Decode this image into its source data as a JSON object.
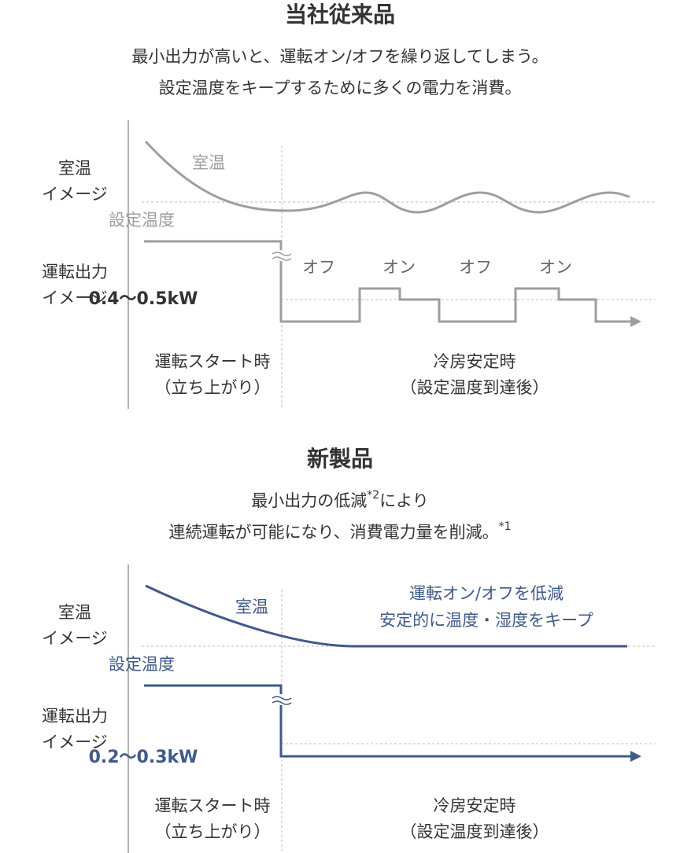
{
  "sections": [
    {
      "title": "当社従来品",
      "description": [
        [
          "最小出力が高いと、運転オン/オフを繰り返してしまう。"
        ],
        [
          "設定温度をキープするために多くの電力を消費。"
        ]
      ],
      "color": "#9e9e9e",
      "output_color": "#333333",
      "row_labels": [
        [
          "室温",
          "イメージ"
        ],
        [
          "運転出力",
          "イメージ"
        ]
      ],
      "curve_label": "室温",
      "setpoint_label": "設定温度",
      "output_label": "0.4〜0.5kW",
      "state_labels": [
        "オフ",
        "オン",
        "オフ",
        "オン"
      ],
      "phases": [
        [
          "運転スタート時",
          "（立ち上がり）"
        ],
        [
          "冷房安定時",
          "（設定温度到達後）"
        ]
      ]
    },
    {
      "title": "新製品",
      "description": [
        [
          "最小出力の低減",
          "*2",
          "により"
        ],
        [
          "連続運転が可能になり、消費電力量を削減。",
          "*1"
        ]
      ],
      "color": "#3f5a87",
      "output_color": "#3f5a87",
      "row_labels": [
        [
          "室温",
          "イメージ"
        ],
        [
          "運転出力",
          "イメージ"
        ]
      ],
      "curve_label": "室温",
      "setpoint_label": "設定温度",
      "output_label": "0.2〜0.3kW",
      "annotation": [
        "運転オン/オフを低減",
        "安定的に温度・湿度をキープ"
      ],
      "phases": [
        [
          "運転スタート時",
          "（立ち上がり）"
        ],
        [
          "冷房安定時",
          "（設定温度到達後）"
        ]
      ]
    }
  ]
}
